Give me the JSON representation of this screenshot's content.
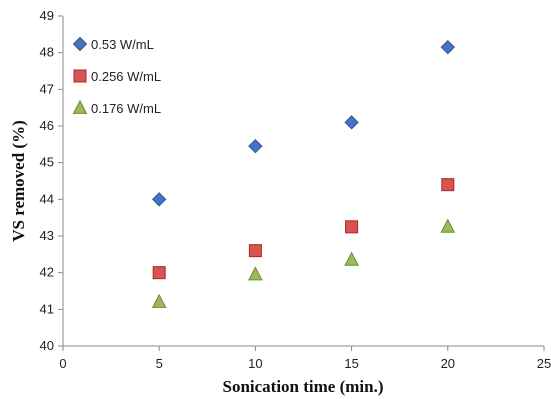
{
  "chart_data": {
    "type": "scatter",
    "title": "",
    "xlabel": "Sonication time (min.)",
    "ylabel": "VS removed (%)",
    "xlim": [
      0,
      25
    ],
    "ylim": [
      40,
      49
    ],
    "xticks": [
      "0",
      "5",
      "10",
      "15",
      "20",
      "25"
    ],
    "yticks": [
      "40",
      "41",
      "42",
      "43",
      "44",
      "45",
      "46",
      "47",
      "48",
      "49"
    ],
    "grid": false,
    "legend_position": "top-left",
    "series": [
      {
        "name": "0.53 W/mL",
        "marker": "diamond",
        "color": "#4472C4",
        "stroke": "#2F5597",
        "x": [
          5,
          10,
          15,
          20
        ],
        "y": [
          44.0,
          45.45,
          46.1,
          48.15
        ]
      },
      {
        "name": "0.256 W/mL",
        "marker": "square",
        "color": "#D9534F",
        "stroke": "#A52A2A",
        "x": [
          5,
          10,
          15,
          20
        ],
        "y": [
          42.0,
          42.6,
          43.25,
          44.4
        ]
      },
      {
        "name": "0.176 W/mL",
        "marker": "triangle",
        "color": "#9BBB59",
        "stroke": "#6E8B3D",
        "x": [
          5,
          10,
          15,
          20
        ],
        "y": [
          41.2,
          41.95,
          42.35,
          43.25
        ]
      }
    ]
  }
}
